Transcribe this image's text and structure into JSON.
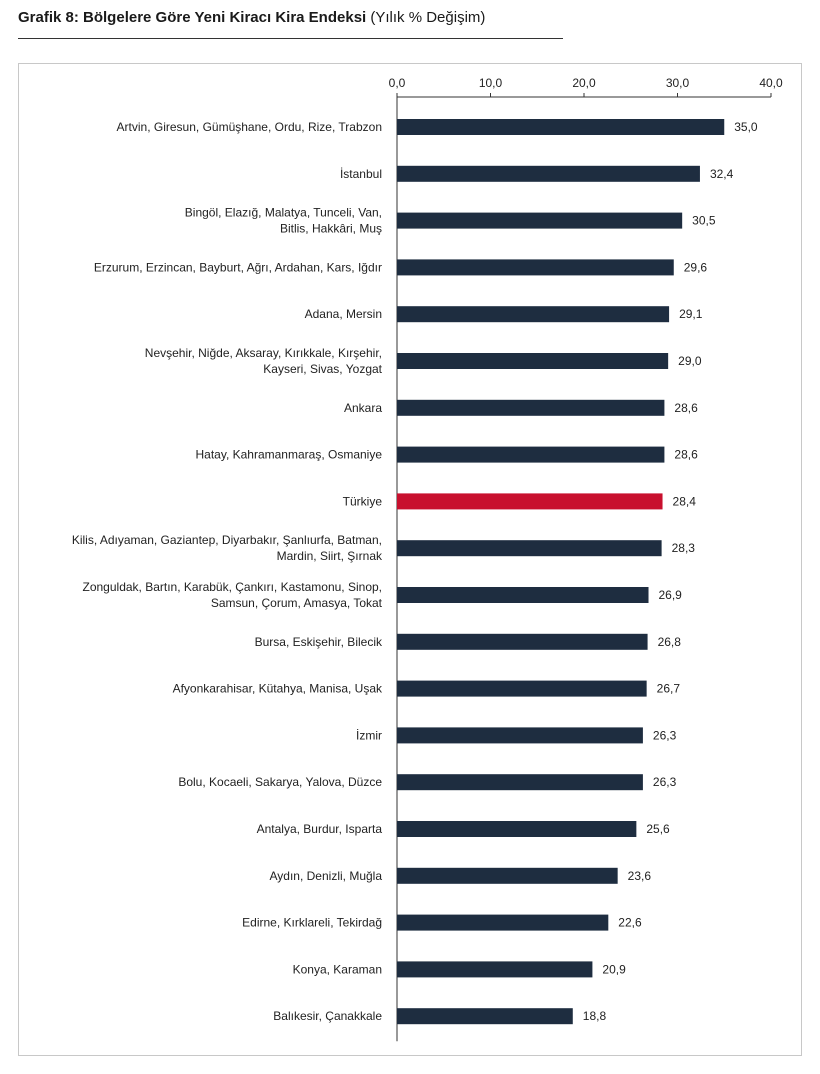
{
  "title": {
    "bold": "Grafik 8: Bölgelere Göre Yeni Kiracı Kira Endeksi",
    "subtitle": "(Yılık % Değişim)"
  },
  "colors": {
    "bar": "#1e2d40",
    "highlight": "#c8102e",
    "axis": "#333333"
  },
  "chart_data": {
    "type": "bar",
    "orientation": "horizontal",
    "xlim": [
      0,
      40
    ],
    "x_ticks": [
      "0,0",
      "10,0",
      "20,0",
      "30,0",
      "40,0"
    ],
    "x_axis_position": "top",
    "grid": false,
    "legend": "none",
    "highlight_category": "Türkiye",
    "categories": [
      [
        "Artvin, Giresun, Gümüşhane, Ordu, Rize, Trabzon"
      ],
      [
        "İstanbul"
      ],
      [
        "Bingöl, Elazığ, Malatya, Tunceli, Van,",
        "Bitlis, Hakkâri, Muş"
      ],
      [
        "Erzurum, Erzincan, Bayburt, Ağrı, Ardahan, Kars, Iğdır"
      ],
      [
        "Adana, Mersin"
      ],
      [
        "Nevşehir, Niğde, Aksaray, Kırıkkale, Kırşehir,",
        "Kayseri, Sivas, Yozgat"
      ],
      [
        "Ankara"
      ],
      [
        "Hatay, Kahramanmaraş, Osmaniye"
      ],
      [
        "Türkiye"
      ],
      [
        "Kilis, Adıyaman, Gaziantep, Diyarbakır, Şanlıurfa, Batman,",
        "Mardin, Siirt, Şırnak"
      ],
      [
        "Zonguldak, Bartın, Karabük, Çankırı, Kastamonu, Sinop,",
        "Samsun, Çorum, Amasya, Tokat"
      ],
      [
        "Bursa, Eskişehir, Bilecik"
      ],
      [
        "Afyonkarahisar, Kütahya, Manisa, Uşak"
      ],
      [
        "İzmir"
      ],
      [
        "Bolu, Kocaeli, Sakarya, Yalova, Düzce"
      ],
      [
        "Antalya, Burdur, Isparta"
      ],
      [
        "Aydın, Denizli, Muğla"
      ],
      [
        "Edirne, Kırklareli, Tekirdağ"
      ],
      [
        "Konya, Karaman"
      ],
      [
        "Balıkesir, Çanakkale"
      ]
    ],
    "values": [
      35.0,
      32.4,
      30.5,
      29.6,
      29.1,
      29.0,
      28.6,
      28.6,
      28.4,
      28.3,
      26.9,
      26.8,
      26.7,
      26.3,
      26.3,
      25.6,
      23.6,
      22.6,
      20.9,
      18.8
    ],
    "value_labels": [
      "35,0",
      "32,4",
      "30,5",
      "29,6",
      "29,1",
      "29,0",
      "28,6",
      "28,6",
      "28,4",
      "28,3",
      "26,9",
      "26,8",
      "26,7",
      "26,3",
      "26,3",
      "25,6",
      "23,6",
      "22,6",
      "20,9",
      "18,8"
    ]
  }
}
